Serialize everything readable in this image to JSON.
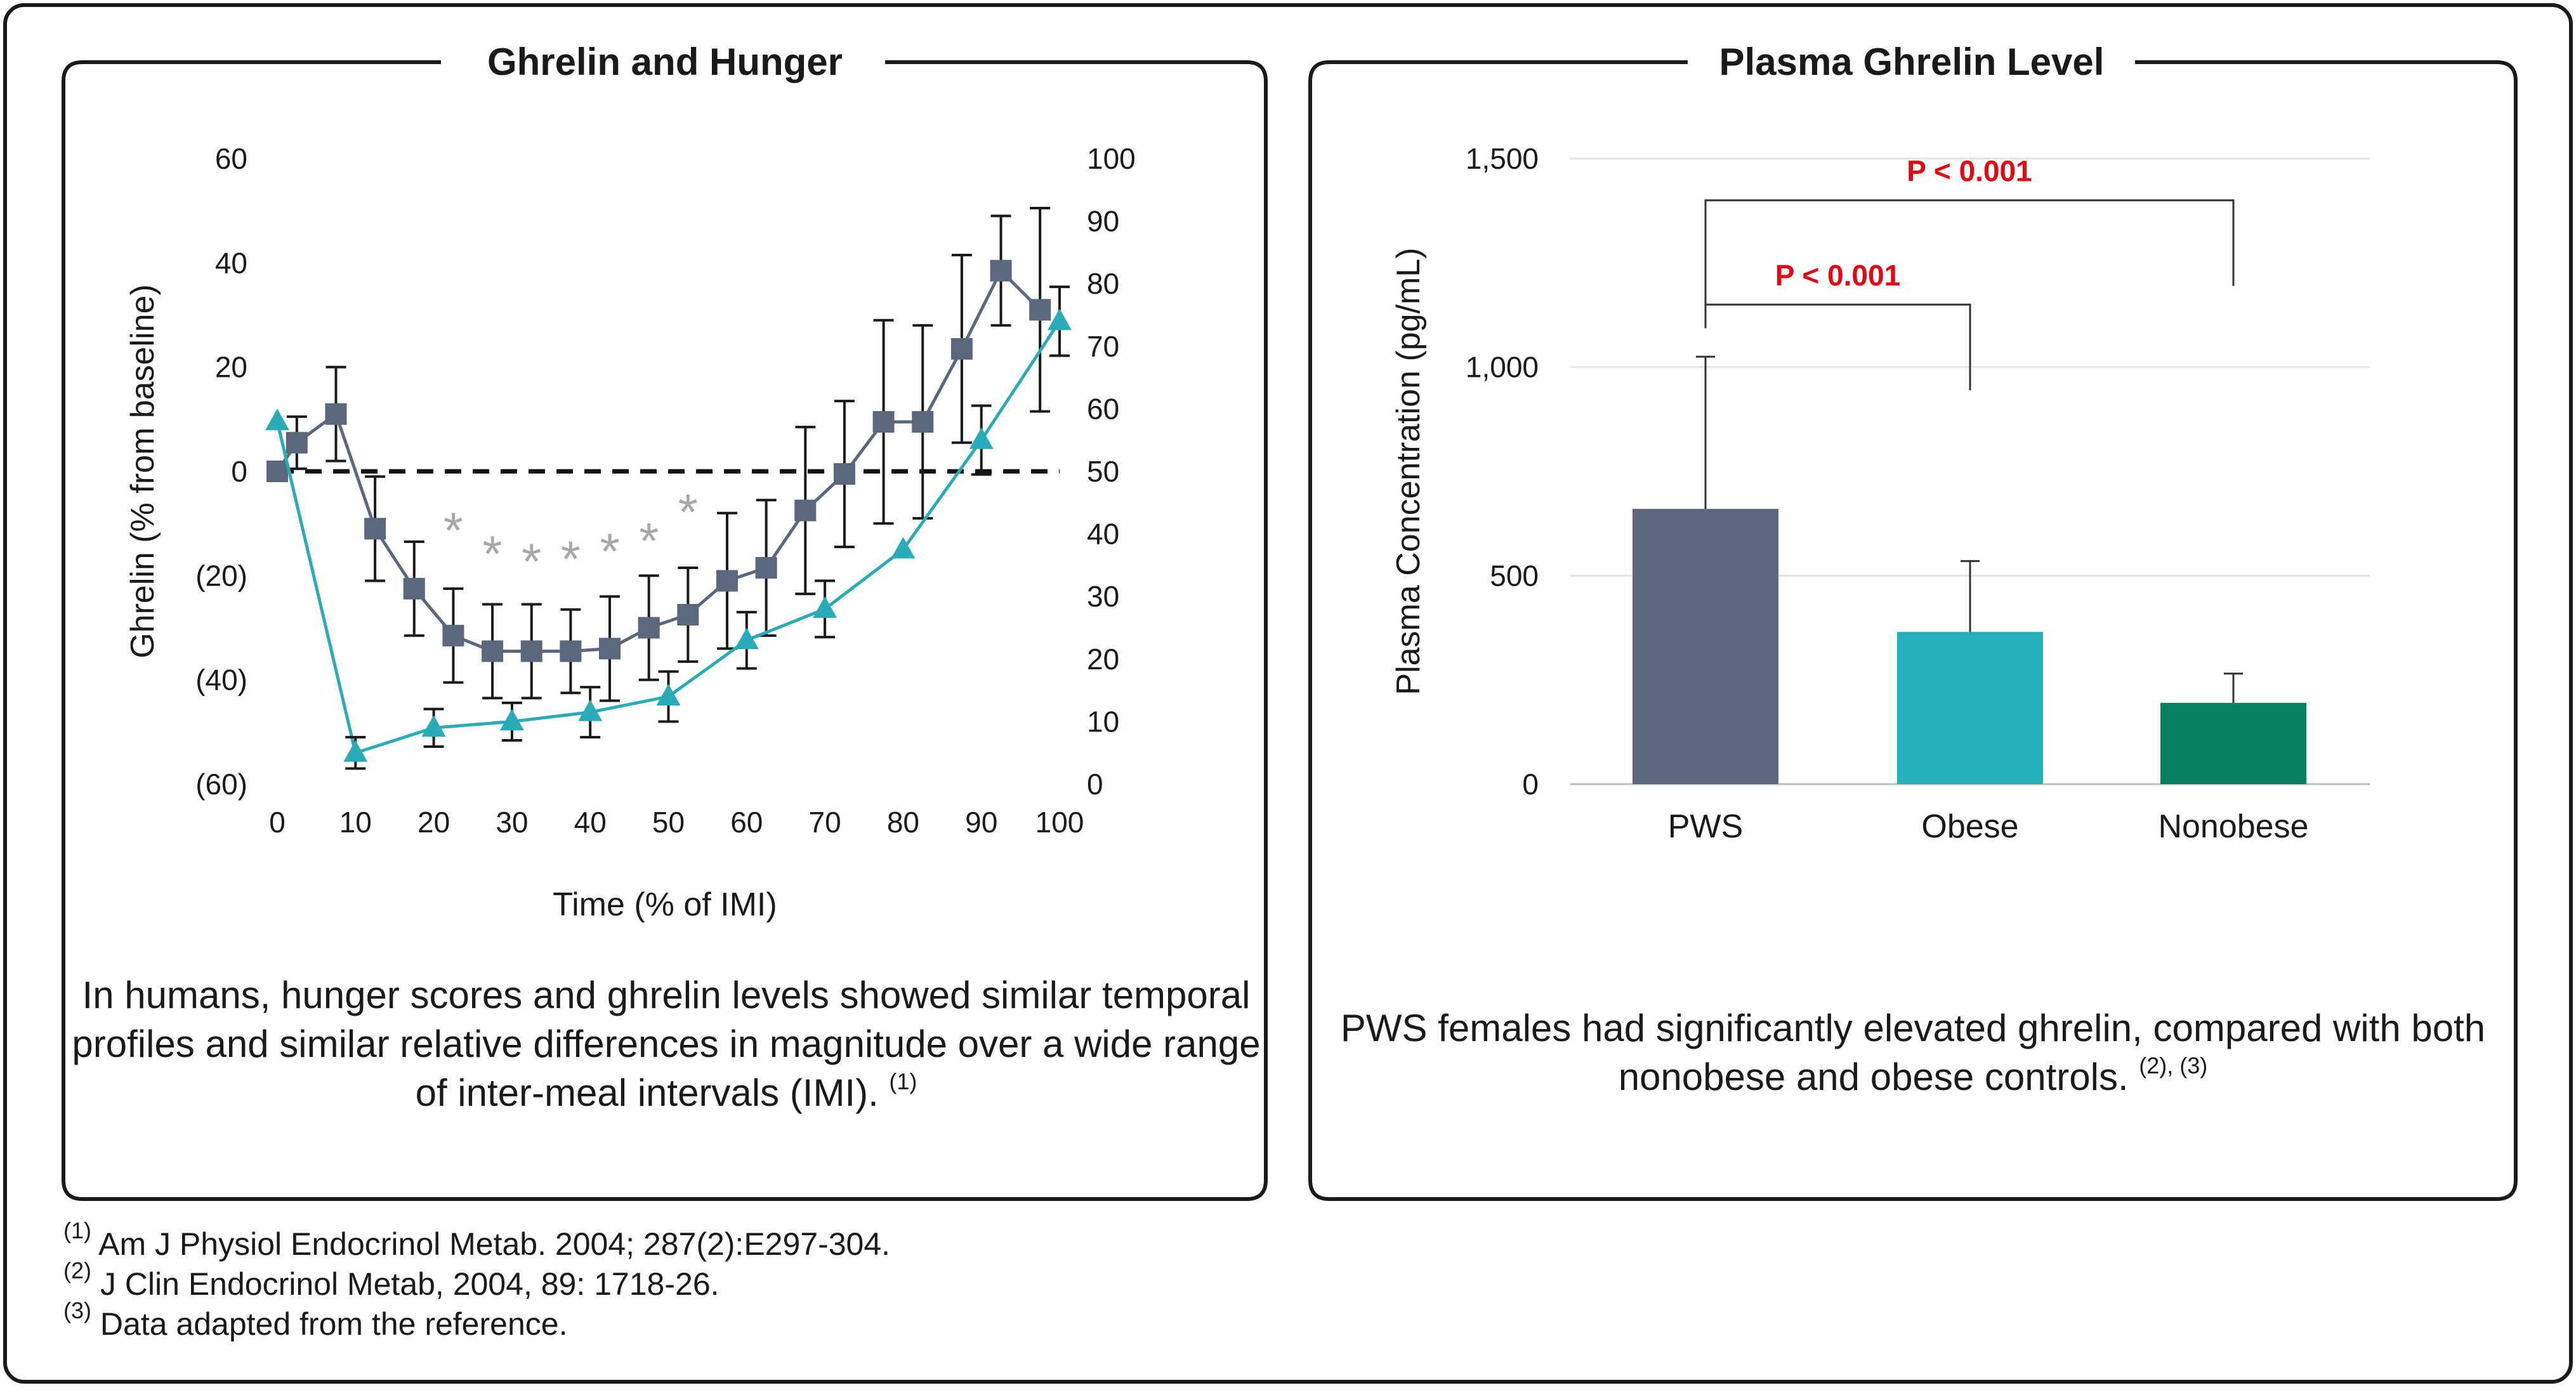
{
  "left_panel": {
    "title": "Ghrelin and Hunger",
    "caption_text": "In humans, hunger scores and ghrelin levels showed similar temporal profiles and similar relative differences in magnitude over a wide range of inter-meal intervals (IMI).",
    "caption_ref": "(1)"
  },
  "right_panel": {
    "title": "Plasma Ghrelin Level",
    "caption_text": "PWS females had significantly elevated ghrelin, compared with both nonobese and obese controls.",
    "caption_ref": "(2), (3)"
  },
  "references": [
    {
      "mark": "(1)",
      "text": "Am J Physiol Endocrinol Metab. 2004; 287(2):E297-304."
    },
    {
      "mark": "(2)",
      "text": "J Clin Endocrinol Metab, 2004, 89: 1718-26."
    },
    {
      "mark": "(3)",
      "text": "Data adapted from the reference."
    }
  ],
  "colors": {
    "frame": "#1a1a1a",
    "ghrelin_series": "#5a677d",
    "hunger_series": "#2aacb8",
    "pws_bar": "#5a677d",
    "obese_bar": "#24afb9",
    "nonobese_bar": "#067f5f",
    "significance": "#e30613",
    "marker_star": "#a8a8a8",
    "grid": "#e6e6e6"
  },
  "chart_data": [
    {
      "type": "line",
      "title": "Ghrelin and Hunger",
      "xlabel": "Time (% of IMI)",
      "ylabel": "Ghrelin (% from baseline)",
      "y2label": "",
      "xlim": [
        0,
        100
      ],
      "ylim": [
        -60,
        60
      ],
      "y2lim": [
        0,
        100
      ],
      "x_ticks": [
        0,
        10,
        20,
        30,
        40,
        50,
        60,
        70,
        80,
        90,
        100
      ],
      "y_ticks": [
        {
          "value": 60,
          "label": "60"
        },
        {
          "value": 40,
          "label": "40"
        },
        {
          "value": 20,
          "label": "20"
        },
        {
          "value": 0,
          "label": "0"
        },
        {
          "value": -20,
          "label": "(20)"
        },
        {
          "value": -40,
          "label": "(40)"
        },
        {
          "value": -60,
          "label": "(60)"
        }
      ],
      "y2_ticks": [
        0,
        10,
        20,
        30,
        40,
        50,
        60,
        70,
        80,
        90,
        100
      ],
      "baseline": 0,
      "legend": "none",
      "grid": false,
      "series": [
        {
          "axis": "left",
          "marker": "square",
          "points": [
            {
              "x": 0,
              "y": 0,
              "err": 0
            },
            {
              "x": 2.5,
              "y": 5.5,
              "err": 5
            },
            {
              "x": 7.5,
              "y": 11,
              "err": 9
            },
            {
              "x": 12.5,
              "y": -11,
              "err": 10
            },
            {
              "x": 17.5,
              "y": -22.5,
              "err": 9
            },
            {
              "x": 22.5,
              "y": -31.5,
              "err": 9
            },
            {
              "x": 27.5,
              "y": -34.5,
              "err": 9
            },
            {
              "x": 32.5,
              "y": -34.5,
              "err": 9
            },
            {
              "x": 37.5,
              "y": -34.5,
              "err": 8
            },
            {
              "x": 42.5,
              "y": -34,
              "err": 10
            },
            {
              "x": 47.5,
              "y": -30,
              "err": 10
            },
            {
              "x": 52.5,
              "y": -27.5,
              "err": 9
            },
            {
              "x": 57.5,
              "y": -21,
              "err": 13
            },
            {
              "x": 62.5,
              "y": -18.5,
              "err": 13
            },
            {
              "x": 67.5,
              "y": -7.5,
              "err": 16
            },
            {
              "x": 72.5,
              "y": -0.5,
              "err": 14
            },
            {
              "x": 77.5,
              "y": 9.5,
              "err": 19.5
            },
            {
              "x": 82.5,
              "y": 9.5,
              "err": 18.5
            },
            {
              "x": 87.5,
              "y": 23.5,
              "err": 18
            },
            {
              "x": 92.5,
              "y": 38.5,
              "err": 10.5
            },
            {
              "x": 97.5,
              "y": 31,
              "err": 19.5
            }
          ]
        },
        {
          "axis": "right",
          "marker": "triangle",
          "points": [
            {
              "x": 0,
              "y": 58,
              "err": 0
            },
            {
              "x": 10,
              "y": 5,
              "err": 2.5
            },
            {
              "x": 20,
              "y": 9,
              "err": 3
            },
            {
              "x": 30,
              "y": 10,
              "err": 3
            },
            {
              "x": 40,
              "y": 11.5,
              "err": 4
            },
            {
              "x": 50,
              "y": 14,
              "err": 4
            },
            {
              "x": 60,
              "y": 23,
              "err": 4.5
            },
            {
              "x": 70,
              "y": 28,
              "err": 4.5
            },
            {
              "x": 80,
              "y": 37.5,
              "err": 0
            },
            {
              "x": 90,
              "y": 55,
              "err": 5.5
            },
            {
              "x": 100,
              "y": 74,
              "err": 5.5
            }
          ]
        }
      ],
      "annotations": [
        {
          "symbol": "*",
          "x": 22.5,
          "y": -11
        },
        {
          "symbol": "*",
          "x": 27.5,
          "y": -15.5
        },
        {
          "symbol": "*",
          "x": 32.5,
          "y": -17
        },
        {
          "symbol": "*",
          "x": 37.5,
          "y": -16.5
        },
        {
          "symbol": "*",
          "x": 42.5,
          "y": -15
        },
        {
          "symbol": "*",
          "x": 47.5,
          "y": -13
        },
        {
          "symbol": "*",
          "x": 52.5,
          "y": -7.5
        }
      ]
    },
    {
      "type": "bar",
      "title": "Plasma Ghrelin Level",
      "xlabel": "",
      "ylabel": "Plasma Concentration (pg/mL)",
      "ylim": [
        0,
        1500
      ],
      "y_ticks": [
        {
          "value": 0,
          "label": "0"
        },
        {
          "value": 500,
          "label": "500"
        },
        {
          "value": 1000,
          "label": "1,000"
        },
        {
          "value": 1500,
          "label": "1,500"
        }
      ],
      "grid": true,
      "legend": "none",
      "categories": [
        "PWS",
        "Obese",
        "Nonobese"
      ],
      "values": [
        660,
        365,
        195
      ],
      "errors": [
        365,
        170,
        70
      ],
      "significance": [
        {
          "from": 0,
          "to": 1,
          "label": "P < 0.001",
          "level": 1150
        },
        {
          "from": 0,
          "to": 2,
          "label": "P < 0.001",
          "level": 1400
        }
      ]
    }
  ]
}
